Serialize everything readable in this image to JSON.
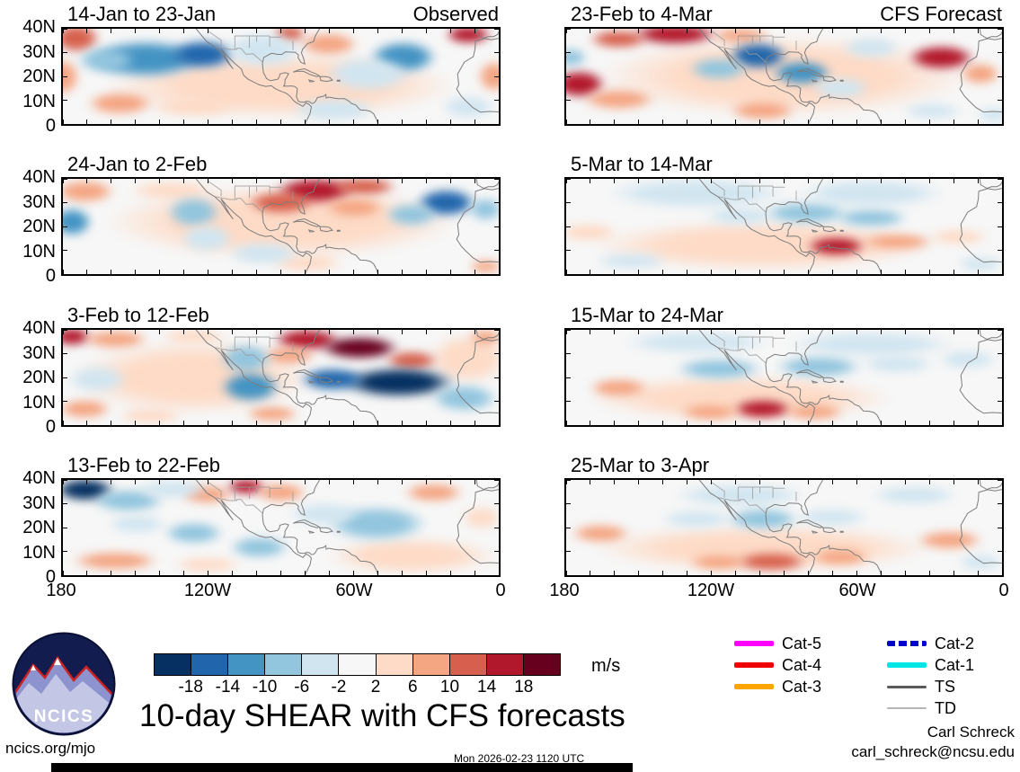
{
  "title": "10-day SHEAR with CFS forecasts",
  "logo": {
    "text": "NCICS"
  },
  "footer": {
    "site": "ncics.org/mjo",
    "timestamp": "Mon 2026-02-23 1120 UTC",
    "author": "Carl Schreck",
    "email": "carl_schreck@ncsu.edu"
  },
  "colorbar": {
    "tick_labels": [
      "-18",
      "-14",
      "-10",
      "-6",
      "-2",
      "2",
      "6",
      "10",
      "14",
      "18"
    ],
    "units": "m/s"
  },
  "legend": {
    "columns": [
      [
        {
          "label": "Cat-5",
          "color": "#ff00ff",
          "thickness": 6,
          "dash": false
        },
        {
          "label": "Cat-4",
          "color": "#ee0000",
          "thickness": 6,
          "dash": false
        },
        {
          "label": "Cat-3",
          "color": "#ffa500",
          "thickness": 6,
          "dash": false
        }
      ],
      [
        {
          "label": "Cat-2",
          "color": "#0000cd",
          "thickness": 6,
          "dash": true
        },
        {
          "label": "Cat-1",
          "color": "#00e6e6",
          "thickness": 6,
          "dash": false
        },
        {
          "label": "TS",
          "color": "#5a5a5a",
          "thickness": 3,
          "dash": false
        },
        {
          "label": "TD",
          "color": "#b5b5b5",
          "thickness": 2,
          "dash": false
        }
      ]
    ]
  },
  "chart_data": {
    "type": "heatmap",
    "title": "10-day SHEAR with CFS forecasts",
    "units": "m/s",
    "lon_ticks": [
      "180",
      "120W",
      "60W",
      "0"
    ],
    "lat_ticks": [
      "40N",
      "30N",
      "20N",
      "10N",
      "0"
    ],
    "lon_range_deg": [
      -180,
      0
    ],
    "lat_range_deg": [
      0,
      40
    ],
    "levels": [
      -18,
      -14,
      -10,
      -6,
      -2,
      2,
      6,
      10,
      14,
      18
    ],
    "colors": [
      "#053061",
      "#2166ac",
      "#4393c3",
      "#92c5de",
      "#d1e5f0",
      "#f7f7f7",
      "#fddbc7",
      "#f4a582",
      "#d6604d",
      "#b2182b",
      "#67001f"
    ],
    "blob_format": "[x_frac_from_180W, y_frac_from_40N, rx_frac, ry_frac, shear_anomaly_mps]",
    "panels": [
      {
        "label": "14-Jan to 23-Jan",
        "corner": "Observed",
        "col": 0,
        "row": 0,
        "base": 0,
        "blobs": [
          [
            0.5,
            0.6,
            0.52,
            0.45,
            3
          ],
          [
            0.03,
            0.1,
            0.07,
            0.2,
            10
          ],
          [
            0.0,
            0.5,
            0.05,
            0.25,
            7
          ],
          [
            0.13,
            0.78,
            0.1,
            0.16,
            9
          ],
          [
            0.3,
            0.82,
            0.13,
            0.13,
            5
          ],
          [
            0.52,
            0.05,
            0.05,
            0.12,
            13
          ],
          [
            0.61,
            0.16,
            0.09,
            0.16,
            6
          ],
          [
            0.93,
            0.06,
            0.07,
            0.13,
            15
          ],
          [
            0.99,
            0.5,
            0.05,
            0.22,
            6
          ],
          [
            0.19,
            0.32,
            0.17,
            0.26,
            -13
          ],
          [
            0.32,
            0.27,
            0.1,
            0.2,
            -15
          ],
          [
            0.1,
            0.33,
            0.09,
            0.18,
            -8
          ],
          [
            0.46,
            0.22,
            0.12,
            0.25,
            -5
          ],
          [
            0.78,
            0.3,
            0.1,
            0.22,
            -12
          ],
          [
            0.7,
            0.48,
            0.13,
            0.25,
            -5
          ],
          [
            0.62,
            0.85,
            0.13,
            0.16,
            -4
          ],
          [
            0.93,
            0.82,
            0.08,
            0.16,
            -6
          ]
        ]
      },
      {
        "label": "24-Jan to 2-Feb",
        "corner": "",
        "col": 0,
        "row": 1,
        "base": 0,
        "blobs": [
          [
            0.5,
            0.45,
            0.52,
            0.5,
            3
          ],
          [
            0.05,
            0.13,
            0.09,
            0.16,
            7
          ],
          [
            0.25,
            0.12,
            0.13,
            0.13,
            4
          ],
          [
            0.58,
            0.12,
            0.12,
            0.18,
            16
          ],
          [
            0.5,
            0.25,
            0.1,
            0.16,
            10
          ],
          [
            0.69,
            0.08,
            0.1,
            0.13,
            10
          ],
          [
            0.67,
            0.3,
            0.09,
            0.13,
            6
          ],
          [
            0.56,
            0.88,
            0.11,
            0.13,
            5
          ],
          [
            0.97,
            0.92,
            0.05,
            0.09,
            8
          ],
          [
            0.02,
            0.45,
            0.06,
            0.2,
            -13
          ],
          [
            0.3,
            0.35,
            0.08,
            0.22,
            -8
          ],
          [
            0.33,
            0.62,
            0.08,
            0.2,
            -6
          ],
          [
            0.46,
            0.78,
            0.11,
            0.16,
            -4
          ],
          [
            0.88,
            0.25,
            0.09,
            0.19,
            -15
          ],
          [
            0.8,
            0.38,
            0.08,
            0.16,
            -7
          ],
          [
            0.97,
            0.32,
            0.05,
            0.16,
            -8
          ]
        ]
      },
      {
        "label": "3-Feb to 12-Feb",
        "corner": "",
        "col": 0,
        "row": 2,
        "base": 0,
        "blobs": [
          [
            0.3,
            0.5,
            0.35,
            0.5,
            3
          ],
          [
            0.93,
            0.3,
            0.12,
            0.35,
            3
          ],
          [
            0.02,
            0.07,
            0.06,
            0.13,
            14
          ],
          [
            0.12,
            0.1,
            0.1,
            0.13,
            7
          ],
          [
            0.3,
            0.07,
            0.1,
            0.11,
            4
          ],
          [
            0.05,
            0.83,
            0.08,
            0.13,
            6
          ],
          [
            0.56,
            0.1,
            0.1,
            0.15,
            16
          ],
          [
            0.68,
            0.19,
            0.12,
            0.16,
            20
          ],
          [
            0.52,
            0.27,
            0.08,
            0.13,
            8
          ],
          [
            0.8,
            0.32,
            0.08,
            0.13,
            12
          ],
          [
            0.48,
            0.88,
            0.08,
            0.11,
            9
          ],
          [
            0.2,
            0.9,
            0.1,
            0.11,
            5
          ],
          [
            0.97,
            0.08,
            0.05,
            0.11,
            7
          ],
          [
            0.08,
            0.52,
            0.09,
            0.19,
            -5
          ],
          [
            0.42,
            0.3,
            0.08,
            0.21,
            -9
          ],
          [
            0.43,
            0.6,
            0.09,
            0.21,
            -13
          ],
          [
            0.77,
            0.55,
            0.17,
            0.21,
            -22
          ],
          [
            0.62,
            0.52,
            0.1,
            0.16,
            -15
          ],
          [
            0.92,
            0.72,
            0.1,
            0.19,
            -8
          ]
        ]
      },
      {
        "label": "13-Feb to 22-Feb",
        "corner": "",
        "col": 0,
        "row": 3,
        "base": 0,
        "blobs": [
          [
            0.8,
            0.8,
            0.25,
            0.25,
            3
          ],
          [
            0.33,
            0.15,
            0.08,
            0.13,
            6
          ],
          [
            0.42,
            0.07,
            0.06,
            0.11,
            14
          ],
          [
            0.5,
            0.13,
            0.08,
            0.13,
            7
          ],
          [
            0.12,
            0.85,
            0.13,
            0.13,
            9
          ],
          [
            0.33,
            0.89,
            0.1,
            0.11,
            5
          ],
          [
            0.85,
            0.13,
            0.09,
            0.13,
            6
          ],
          [
            0.96,
            0.4,
            0.06,
            0.16,
            4
          ],
          [
            0.05,
            0.1,
            0.09,
            0.16,
            -19
          ],
          [
            0.15,
            0.22,
            0.11,
            0.16,
            -10
          ],
          [
            0.25,
            0.1,
            0.11,
            0.13,
            -5
          ],
          [
            0.17,
            0.46,
            0.09,
            0.13,
            -6
          ],
          [
            0.3,
            0.56,
            0.09,
            0.15,
            -8
          ],
          [
            0.45,
            0.71,
            0.09,
            0.15,
            -7
          ],
          [
            0.72,
            0.46,
            0.15,
            0.24,
            -7
          ],
          [
            0.6,
            0.36,
            0.11,
            0.16,
            -4
          ]
        ]
      },
      {
        "label": "23-Feb to 4-Mar",
        "corner": "CFS Forecast",
        "col": 1,
        "row": 0,
        "base": 0,
        "blobs": [
          [
            0.5,
            0.5,
            0.55,
            0.55,
            3
          ],
          [
            0.25,
            0.06,
            0.13,
            0.15,
            16
          ],
          [
            0.12,
            0.11,
            0.09,
            0.13,
            10
          ],
          [
            0.4,
            0.07,
            0.09,
            0.11,
            8
          ],
          [
            0.03,
            0.58,
            0.08,
            0.19,
            15
          ],
          [
            0.12,
            0.74,
            0.11,
            0.15,
            8
          ],
          [
            0.86,
            0.3,
            0.1,
            0.17,
            15
          ],
          [
            0.95,
            0.47,
            0.06,
            0.15,
            8
          ],
          [
            0.45,
            0.86,
            0.1,
            0.13,
            7
          ],
          [
            0.01,
            0.3,
            0.05,
            0.13,
            -7
          ],
          [
            0.44,
            0.28,
            0.09,
            0.19,
            -18
          ],
          [
            0.54,
            0.46,
            0.09,
            0.17,
            -13
          ],
          [
            0.35,
            0.42,
            0.09,
            0.16,
            -7
          ],
          [
            0.63,
            0.62,
            0.09,
            0.15,
            -5
          ],
          [
            0.7,
            0.2,
            0.09,
            0.15,
            -4
          ],
          [
            0.98,
            0.9,
            0.05,
            0.11,
            -6
          ],
          [
            0.84,
            0.86,
            0.09,
            0.11,
            -3
          ]
        ]
      },
      {
        "label": "5-Mar to 14-Mar",
        "corner": "",
        "col": 1,
        "row": 1,
        "base": 0,
        "blobs": [
          [
            0.45,
            0.7,
            0.5,
            0.35,
            3
          ],
          [
            0.3,
            0.15,
            0.27,
            0.22,
            -3
          ],
          [
            0.7,
            0.15,
            0.22,
            0.2,
            -3
          ],
          [
            0.55,
            0.36,
            0.13,
            0.15,
            -9
          ],
          [
            0.7,
            0.41,
            0.11,
            0.13,
            -8
          ],
          [
            0.4,
            0.39,
            0.11,
            0.13,
            -6
          ],
          [
            0.05,
            0.56,
            0.09,
            0.13,
            3
          ],
          [
            0.62,
            0.71,
            0.09,
            0.13,
            14
          ],
          [
            0.76,
            0.66,
            0.11,
            0.11,
            7
          ],
          [
            0.9,
            0.61,
            0.09,
            0.11,
            5
          ],
          [
            0.15,
            0.86,
            0.11,
            0.11,
            -3
          ],
          [
            0.95,
            0.89,
            0.07,
            0.11,
            -4
          ]
        ]
      },
      {
        "label": "15-Mar to 24-Mar",
        "corner": "",
        "col": 1,
        "row": 2,
        "base": 0,
        "blobs": [
          [
            0.4,
            0.72,
            0.45,
            0.32,
            3
          ],
          [
            0.3,
            0.13,
            0.22,
            0.16,
            -3
          ],
          [
            0.7,
            0.15,
            0.25,
            0.18,
            -3
          ],
          [
            0.35,
            0.41,
            0.13,
            0.15,
            -7
          ],
          [
            0.58,
            0.39,
            0.13,
            0.15,
            -9
          ],
          [
            0.76,
            0.36,
            0.11,
            0.13,
            -5
          ],
          [
            0.12,
            0.61,
            0.09,
            0.13,
            6
          ],
          [
            0.45,
            0.83,
            0.09,
            0.13,
            15
          ],
          [
            0.33,
            0.86,
            0.09,
            0.11,
            8
          ],
          [
            0.57,
            0.86,
            0.09,
            0.11,
            7
          ],
          [
            0.92,
            0.31,
            0.09,
            0.13,
            -3
          ]
        ]
      },
      {
        "label": "25-Mar to 3-Apr",
        "corner": "",
        "col": 1,
        "row": 3,
        "base": 0,
        "blobs": [
          [
            0.45,
            0.72,
            0.5,
            0.32,
            3
          ],
          [
            0.4,
            0.16,
            0.2,
            0.16,
            -3
          ],
          [
            0.8,
            0.16,
            0.13,
            0.13,
            -3
          ],
          [
            0.45,
            0.41,
            0.11,
            0.15,
            -9
          ],
          [
            0.3,
            0.41,
            0.11,
            0.13,
            -5
          ],
          [
            0.61,
            0.39,
            0.11,
            0.13,
            -4
          ],
          [
            0.08,
            0.56,
            0.09,
            0.13,
            6
          ],
          [
            0.47,
            0.86,
            0.11,
            0.13,
            11
          ],
          [
            0.35,
            0.86,
            0.09,
            0.11,
            6
          ],
          [
            0.63,
            0.81,
            0.09,
            0.11,
            6
          ],
          [
            0.88,
            0.63,
            0.1,
            0.13,
            8
          ],
          [
            0.95,
            0.86,
            0.07,
            0.11,
            -3
          ]
        ]
      }
    ]
  }
}
